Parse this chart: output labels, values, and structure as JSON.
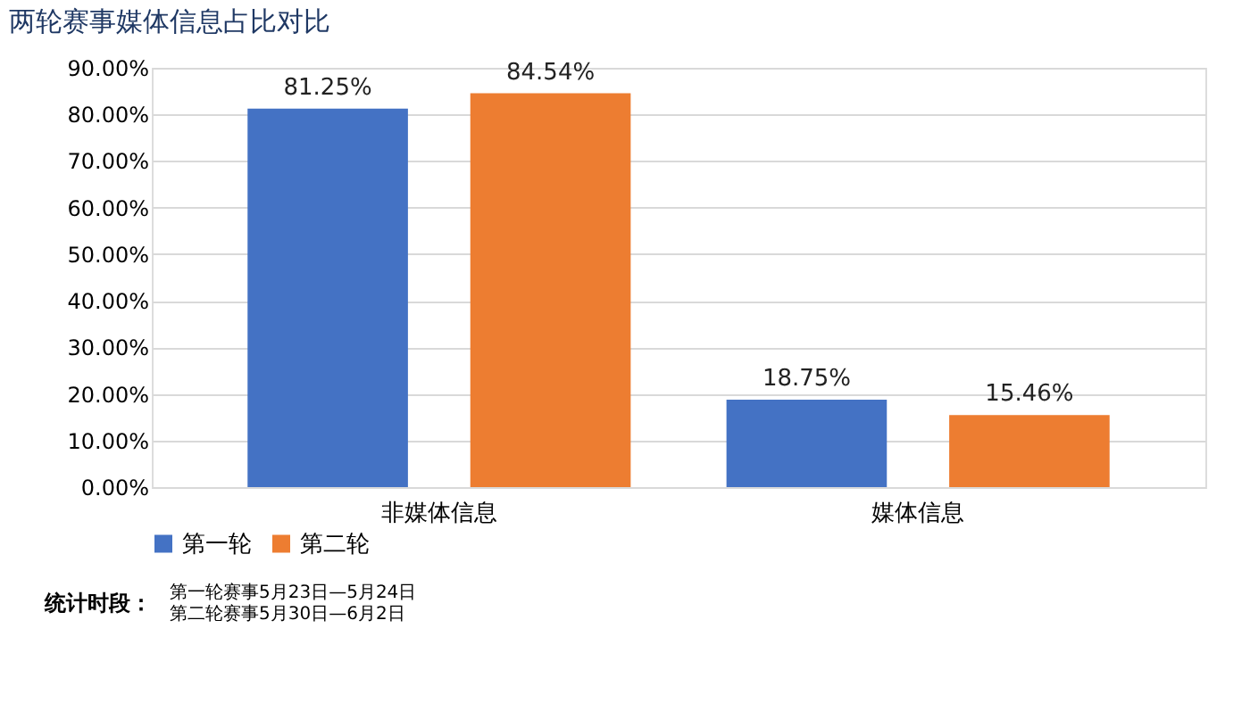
{
  "chart_data": {
    "type": "bar",
    "title": "两轮赛事媒体信息占比对比",
    "categories": [
      "非媒体信息",
      "媒体信息"
    ],
    "series": [
      {
        "name": "第一轮",
        "color": "#4472c4",
        "values": [
          81.25,
          18.75
        ],
        "value_labels": [
          "81.25%",
          "18.75%"
        ]
      },
      {
        "name": "第二轮",
        "color": "#ed7d31",
        "values": [
          84.54,
          15.46
        ],
        "value_labels": [
          "84.54%",
          "15.46%"
        ]
      }
    ],
    "ylim": [
      0,
      90
    ],
    "yticks": [
      {
        "value": 0,
        "label": "0.00%"
      },
      {
        "value": 10,
        "label": "10.00%"
      },
      {
        "value": 20,
        "label": "20.00%"
      },
      {
        "value": 30,
        "label": "30.00%"
      },
      {
        "value": 40,
        "label": "40.00%"
      },
      {
        "value": 50,
        "label": "50.00%"
      },
      {
        "value": 60,
        "label": "60.00%"
      },
      {
        "value": 70,
        "label": "70.00%"
      },
      {
        "value": 80,
        "label": "80.00%"
      },
      {
        "value": 90,
        "label": "90.00%"
      }
    ],
    "grid": "y",
    "legend": "bottom",
    "annotations": [
      "统计时段：",
      "第一轮赛事5月23日—5月24日",
      "第二轮赛事5月30日—6月2日"
    ]
  }
}
